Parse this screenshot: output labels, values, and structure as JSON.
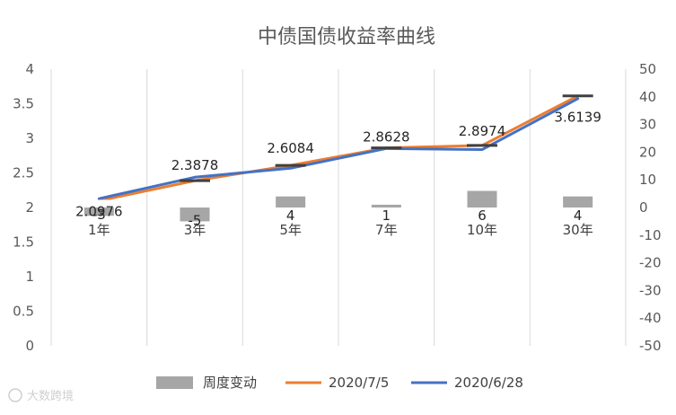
{
  "chart_data": {
    "type": "bar+line",
    "title": "中债国债收益率曲线",
    "categories": [
      "1年",
      "3年",
      "5年",
      "7年",
      "10年",
      "30年"
    ],
    "bar_series": {
      "name": "周度变动",
      "axis": "right",
      "values": [
        -3,
        -5,
        4,
        1,
        6,
        4
      ],
      "labels": [
        "-3",
        "-5",
        "4",
        "1",
        "6",
        "4"
      ],
      "color": "#a6a6a6"
    },
    "line_series": [
      {
        "name": "2020/7/5",
        "axis": "left",
        "values": [
          2.0976,
          2.3878,
          2.6084,
          2.8628,
          2.8974,
          3.6139
        ],
        "labels": [
          "2.0976",
          "2.3878",
          "2.6084",
          "2.8628",
          "2.8974",
          "3.6139"
        ],
        "color": "#ed7d31"
      },
      {
        "name": "2020/6/28",
        "axis": "left",
        "values": [
          2.1276,
          2.4378,
          2.5684,
          2.8528,
          2.8374,
          3.5739
        ],
        "color": "#4472c4"
      }
    ],
    "y_left": {
      "min": 0,
      "max": 4,
      "step": 0.5,
      "ticks": [
        "0",
        "0.5",
        "1",
        "1.5",
        "2",
        "2.5",
        "3",
        "3.5",
        "4"
      ]
    },
    "y_right": {
      "min": -50,
      "max": 50,
      "step": 10,
      "ticks": [
        "-50",
        "-40",
        "-30",
        "-20",
        "-10",
        "0",
        "10",
        "20",
        "30",
        "40",
        "50"
      ]
    },
    "grid": "vertical",
    "legend_position": "bottom",
    "watermark": "大数跨境"
  }
}
